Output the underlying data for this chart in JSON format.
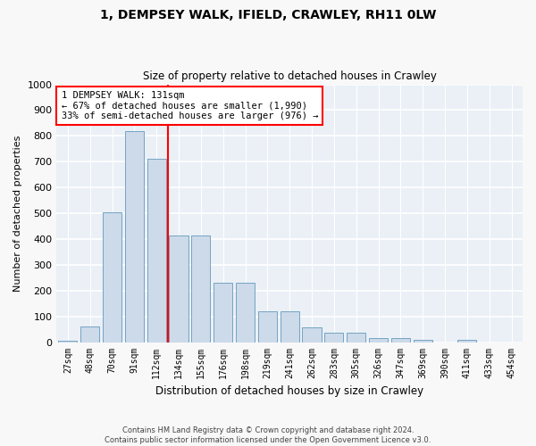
{
  "title": "1, DEMPSEY WALK, IFIELD, CRAWLEY, RH11 0LW",
  "subtitle": "Size of property relative to detached houses in Crawley",
  "xlabel": "Distribution of detached houses by size in Crawley",
  "ylabel": "Number of detached properties",
  "bar_labels": [
    "27sqm",
    "48sqm",
    "70sqm",
    "91sqm",
    "112sqm",
    "134sqm",
    "155sqm",
    "176sqm",
    "198sqm",
    "219sqm",
    "241sqm",
    "262sqm",
    "283sqm",
    "305sqm",
    "326sqm",
    "347sqm",
    "369sqm",
    "390sqm",
    "411sqm",
    "433sqm",
    "454sqm"
  ],
  "bar_values": [
    5,
    60,
    505,
    820,
    710,
    415,
    415,
    230,
    230,
    120,
    120,
    58,
    35,
    35,
    15,
    15,
    8,
    0,
    8,
    0,
    0
  ],
  "bar_color": "#ccdaea",
  "bar_edge_color": "#6699bb",
  "red_line_x": 4.5,
  "annotation_line1": "1 DEMPSEY WALK: 131sqm",
  "annotation_line2": "← 67% of detached houses are smaller (1,990)",
  "annotation_line3": "33% of semi-detached houses are larger (976) →",
  "ylim": [
    0,
    1000
  ],
  "yticks": [
    0,
    100,
    200,
    300,
    400,
    500,
    600,
    700,
    800,
    900,
    1000
  ],
  "plot_bg_color": "#eaf0f6",
  "fig_bg_color": "#f8f8f8",
  "grid_color": "#ffffff",
  "footer_line1": "Contains HM Land Registry data © Crown copyright and database right 2024.",
  "footer_line2": "Contains public sector information licensed under the Open Government Licence v3.0."
}
